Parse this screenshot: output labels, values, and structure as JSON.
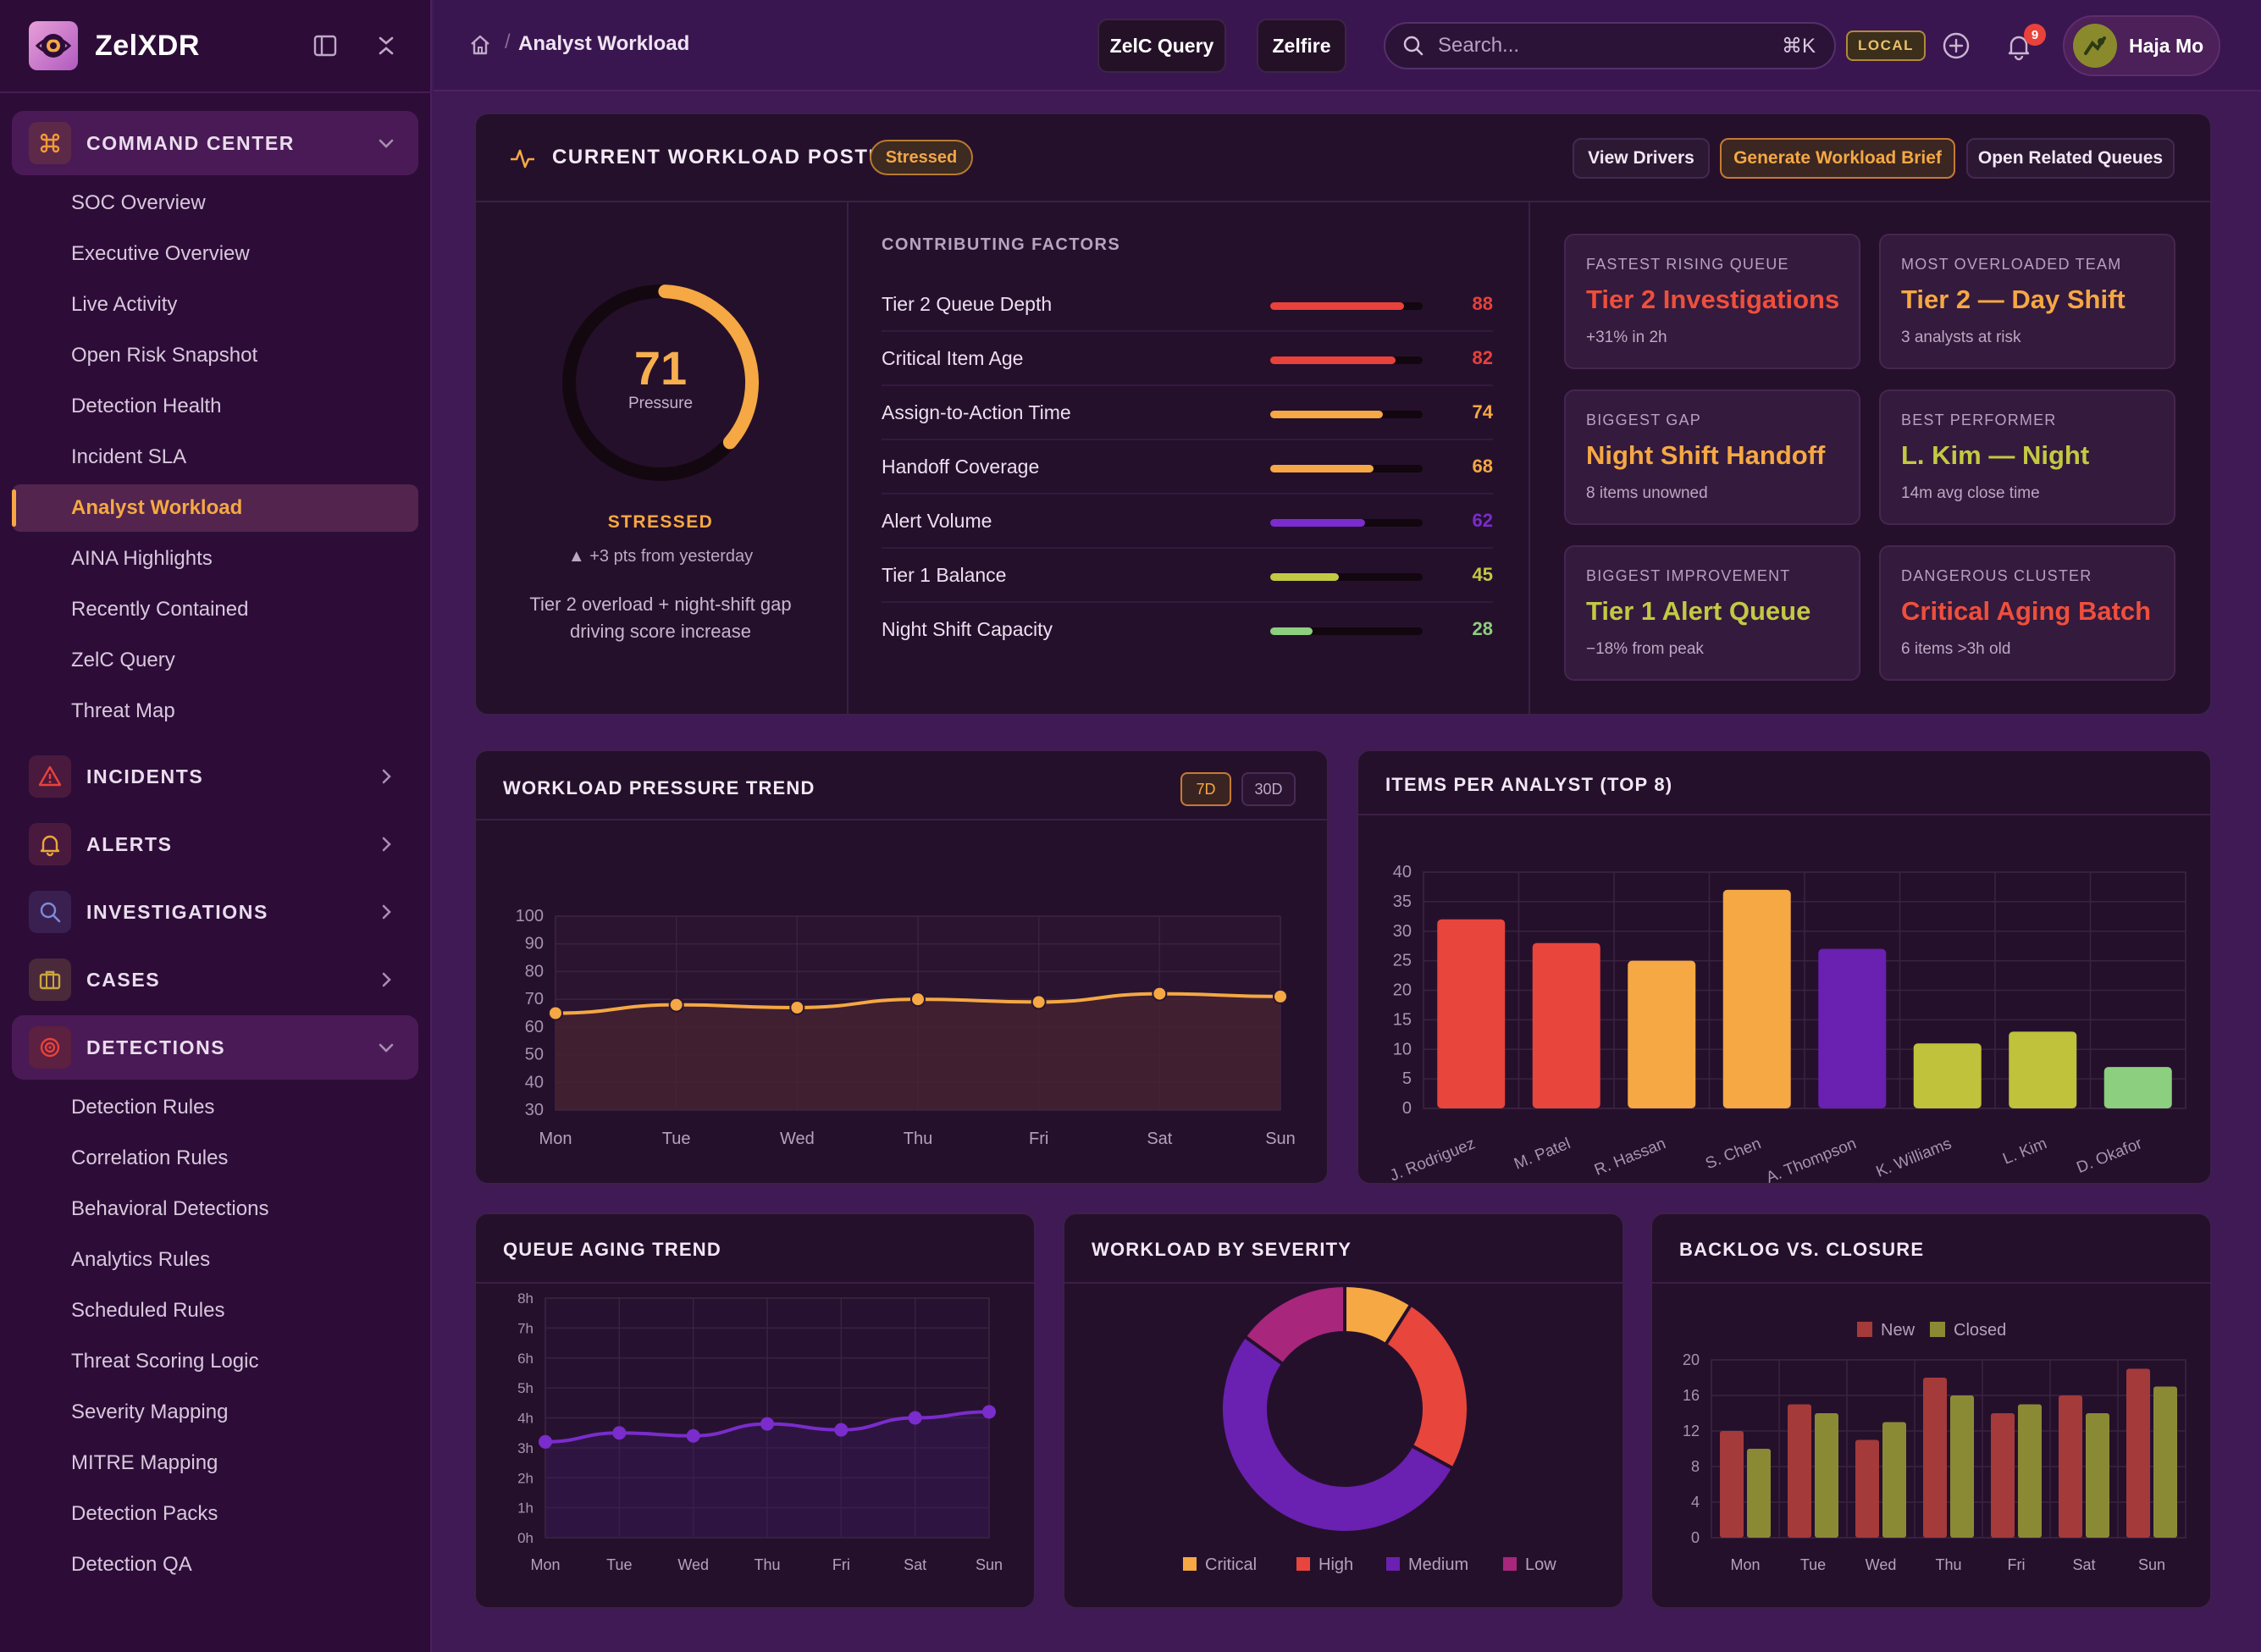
{
  "app": {
    "name": "ZelXDR"
  },
  "sidebar": {
    "sections": [
      {
        "label": "COMMAND CENTER",
        "icon": "command-icon",
        "color": "#f29a3a"
      },
      {
        "label": "INCIDENTS",
        "icon": "warning-icon",
        "color": "#e8423a"
      },
      {
        "label": "ALERTS",
        "icon": "bell-icon",
        "color": "#e9a83a"
      },
      {
        "label": "INVESTIGATIONS",
        "icon": "search-icon",
        "color": "#7e8ad8"
      },
      {
        "label": "CASES",
        "icon": "briefcase-icon",
        "color": "#c9a640"
      },
      {
        "label": "DETECTIONS",
        "icon": "target-icon",
        "color": "#e8423a"
      }
    ],
    "command_center_items": [
      "SOC Overview",
      "Executive Overview",
      "Live Activity",
      "Open Risk Snapshot",
      "Detection Health",
      "Incident SLA",
      "Analyst Workload",
      "AINA Highlights",
      "Recently Contained",
      "ZelC Query",
      "Threat Map"
    ],
    "detections_items": [
      "Detection Rules",
      "Correlation Rules",
      "Behavioral Detections",
      "Analytics Rules",
      "Scheduled Rules",
      "Threat Scoring Logic",
      "Severity Mapping",
      "MITRE Mapping",
      "Detection Packs",
      "Detection QA"
    ]
  },
  "topbar": {
    "breadcrumb": "Analyst Workload",
    "buttons": [
      "ZelC Query",
      "Zelfire"
    ],
    "search_placeholder": "Search...",
    "search_shortcut": "⌘K",
    "env_badge": "LOCAL",
    "notification_count": "9",
    "user_name": "Haja Mo"
  },
  "posture": {
    "title": "CURRENT WORKLOAD POSTURE",
    "badge": "Stressed",
    "actions": [
      "View Drivers",
      "Generate Workload Brief",
      "Open Related Queues"
    ],
    "score": "71",
    "score_value": 71,
    "score_label": "Pressure",
    "status": "STRESSED",
    "delta": "▲ +3 pts from yesterday",
    "description": "Tier 2 overload + night-shift gap driving score increase",
    "factors_title": "CONTRIBUTING FACTORS",
    "factors": [
      {
        "name": "Tier 2 Queue Depth",
        "value": "88",
        "score": 88,
        "color": "#e8423a"
      },
      {
        "name": "Critical Item Age",
        "value": "82",
        "score": 82,
        "color": "#e8423a"
      },
      {
        "name": "Assign-to-Action Time",
        "value": "74",
        "score": 74,
        "color": "#f5a843"
      },
      {
        "name": "Handoff Coverage",
        "value": "68",
        "score": 68,
        "color": "#f5a843"
      },
      {
        "name": "Alert Volume",
        "value": "62",
        "score": 62,
        "color": "#7a2ccc"
      },
      {
        "name": "Tier 1 Balance",
        "value": "45",
        "score": 45,
        "color": "#c2c943"
      },
      {
        "name": "Night Shift Capacity",
        "value": "28",
        "score": 28,
        "color": "#8ccf7e"
      }
    ],
    "highlights": [
      {
        "label": "FASTEST RISING QUEUE",
        "value": "Tier 2 Investigations",
        "sub": "+31% in 2h",
        "color": "#ef4f3c"
      },
      {
        "label": "MOST OVERLOADED TEAM",
        "value": "Tier 2 — Day Shift",
        "sub": "3 analysts at risk",
        "color": "#f5a843"
      },
      {
        "label": "BIGGEST GAP",
        "value": "Night Shift Handoff",
        "sub": "8 items unowned",
        "color": "#f5a843"
      },
      {
        "label": "BEST PERFORMER",
        "value": "L. Kim — Night",
        "sub": "14m avg close time",
        "color": "#c2c943"
      },
      {
        "label": "BIGGEST IMPROVEMENT",
        "value": "Tier 1 Alert Queue",
        "sub": "−18% from peak",
        "color": "#c2c943"
      },
      {
        "label": "DANGEROUS CLUSTER",
        "value": "Critical Aging Batch",
        "sub": "6 items >3h old",
        "color": "#ef4f3c"
      }
    ]
  },
  "panels": {
    "trend_title": "WORKLOAD PRESSURE TREND",
    "trend_ranges": [
      "7D",
      "30D"
    ],
    "analyst_title": "ITEMS PER ANALYST (TOP 8)",
    "aging_title": "QUEUE AGING TREND",
    "severity_title": "WORKLOAD BY SEVERITY",
    "backlog_title": "BACKLOG VS. CLOSURE"
  },
  "chart_data": [
    {
      "id": "pressure-trend",
      "type": "area",
      "title": "WORKLOAD PRESSURE TREND",
      "categories": [
        "Mon",
        "Tue",
        "Wed",
        "Thu",
        "Fri",
        "Sat",
        "Sun"
      ],
      "values": [
        65,
        68,
        67,
        70,
        69,
        72,
        71
      ],
      "ylim": [
        30,
        100
      ],
      "yticks": [
        30,
        40,
        50,
        60,
        70,
        80,
        90,
        100
      ],
      "color": "#f5a843"
    },
    {
      "id": "items-per-analyst",
      "type": "bar",
      "title": "ITEMS PER ANALYST (TOP 8)",
      "categories": [
        "J. Rodriguez",
        "M. Patel",
        "R. Hassan",
        "S. Chen",
        "A. Thompson",
        "K. Williams",
        "L. Kim",
        "D. Okafor"
      ],
      "values": [
        32,
        28,
        25,
        37,
        27,
        11,
        13,
        7
      ],
      "colors": [
        "#e8453c",
        "#e8453c",
        "#f5a843",
        "#f5a843",
        "#6a20b0",
        "#bfc23a",
        "#bfc23a",
        "#8ccf7e"
      ],
      "ylim": [
        0,
        40
      ],
      "yticks": [
        0,
        5,
        10,
        15,
        20,
        25,
        30,
        35,
        40
      ]
    },
    {
      "id": "queue-aging",
      "type": "line",
      "title": "QUEUE AGING TREND",
      "categories": [
        "Mon",
        "Tue",
        "Wed",
        "Thu",
        "Fri",
        "Sat",
        "Sun"
      ],
      "values": [
        3.2,
        3.5,
        3.4,
        3.8,
        3.6,
        4.0,
        4.2
      ],
      "ylim": [
        0,
        8
      ],
      "yticks": [
        "0h",
        "1h",
        "2h",
        "3h",
        "4h",
        "5h",
        "6h",
        "7h",
        "8h"
      ],
      "color": "#7a2ccc"
    },
    {
      "id": "severity",
      "type": "pie",
      "title": "WORKLOAD BY SEVERITY",
      "labels": [
        "Critical",
        "High",
        "Medium",
        "Low"
      ],
      "values": [
        9,
        24,
        52,
        15
      ],
      "colors": [
        "#f5a843",
        "#e8453c",
        "#6a20b0",
        "#a8267c"
      ]
    },
    {
      "id": "backlog-closure",
      "type": "bar",
      "title": "BACKLOG VS. CLOSURE",
      "categories": [
        "Mon",
        "Tue",
        "Wed",
        "Thu",
        "Fri",
        "Sat",
        "Sun"
      ],
      "series": [
        {
          "name": "New",
          "values": [
            12,
            15,
            11,
            18,
            14,
            16,
            19
          ],
          "color": "#a53a3a"
        },
        {
          "name": "Closed",
          "values": [
            10,
            14,
            13,
            16,
            15,
            14,
            17
          ],
          "color": "#8a8a35"
        }
      ],
      "ylim": [
        0,
        20
      ],
      "yticks": [
        0,
        4,
        8,
        12,
        16,
        20
      ]
    }
  ]
}
